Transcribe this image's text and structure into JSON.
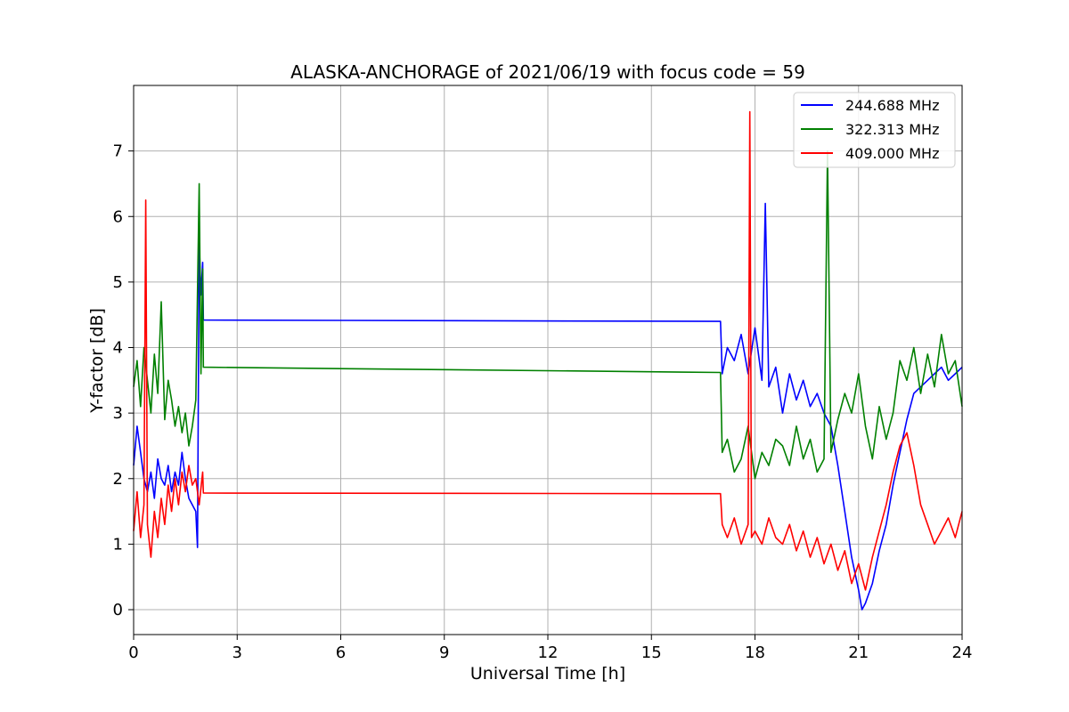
{
  "chart_data": {
    "type": "line",
    "title": "ALASKA-ANCHORAGE of 2021/06/19 with focus code = 59",
    "xlabel": "Universal Time [h]",
    "ylabel": "Y-factor [dB]",
    "xlim": [
      0,
      24
    ],
    "ylim": [
      -0.38,
      8.0
    ],
    "xticks": [
      "0",
      "3",
      "6",
      "9",
      "12",
      "15",
      "18",
      "21",
      "24"
    ],
    "yticks": [
      "0",
      "1",
      "2",
      "3",
      "4",
      "5",
      "6",
      "7"
    ],
    "grid": true,
    "legend_position": "top-right",
    "series": [
      {
        "name": "244.688 MHz",
        "color": "#0000ff",
        "points": [
          [
            0.0,
            2.2
          ],
          [
            0.1,
            2.8
          ],
          [
            0.2,
            2.4
          ],
          [
            0.3,
            2.0
          ],
          [
            0.4,
            1.8
          ],
          [
            0.5,
            2.1
          ],
          [
            0.6,
            1.7
          ],
          [
            0.7,
            2.3
          ],
          [
            0.8,
            2.0
          ],
          [
            0.9,
            1.9
          ],
          [
            1.0,
            2.2
          ],
          [
            1.1,
            1.8
          ],
          [
            1.2,
            2.1
          ],
          [
            1.3,
            1.9
          ],
          [
            1.4,
            2.4
          ],
          [
            1.5,
            2.0
          ],
          [
            1.6,
            1.7
          ],
          [
            1.7,
            1.6
          ],
          [
            1.8,
            1.5
          ],
          [
            1.85,
            0.95
          ],
          [
            1.9,
            5.62
          ],
          [
            1.95,
            4.8
          ],
          [
            2.0,
            5.3
          ],
          [
            2.02,
            4.42
          ],
          [
            17.0,
            4.4
          ],
          [
            17.05,
            3.6
          ],
          [
            17.2,
            4.0
          ],
          [
            17.4,
            3.8
          ],
          [
            17.6,
            4.2
          ],
          [
            17.8,
            3.6
          ],
          [
            18.0,
            4.3
          ],
          [
            18.2,
            3.5
          ],
          [
            18.3,
            6.2
          ],
          [
            18.4,
            3.4
          ],
          [
            18.6,
            3.7
          ],
          [
            18.8,
            3.0
          ],
          [
            19.0,
            3.6
          ],
          [
            19.2,
            3.2
          ],
          [
            19.4,
            3.5
          ],
          [
            19.6,
            3.1
          ],
          [
            19.8,
            3.3
          ],
          [
            20.0,
            3.0
          ],
          [
            20.2,
            2.8
          ],
          [
            20.4,
            2.2
          ],
          [
            20.6,
            1.5
          ],
          [
            20.8,
            0.8
          ],
          [
            21.0,
            0.3
          ],
          [
            21.1,
            0.0
          ],
          [
            21.2,
            0.1
          ],
          [
            21.4,
            0.4
          ],
          [
            21.6,
            0.9
          ],
          [
            21.8,
            1.3
          ],
          [
            22.0,
            1.9
          ],
          [
            22.2,
            2.4
          ],
          [
            22.4,
            2.9
          ],
          [
            22.6,
            3.3
          ],
          [
            22.8,
            3.4
          ],
          [
            23.0,
            3.5
          ],
          [
            23.2,
            3.6
          ],
          [
            23.4,
            3.7
          ],
          [
            23.6,
            3.5
          ],
          [
            23.8,
            3.6
          ],
          [
            24.0,
            3.7
          ]
        ]
      },
      {
        "name": "322.313 MHz",
        "color": "#008000",
        "points": [
          [
            0.0,
            3.4
          ],
          [
            0.1,
            3.8
          ],
          [
            0.2,
            3.1
          ],
          [
            0.3,
            4.0
          ],
          [
            0.4,
            3.5
          ],
          [
            0.5,
            3.0
          ],
          [
            0.6,
            3.9
          ],
          [
            0.7,
            3.3
          ],
          [
            0.8,
            4.7
          ],
          [
            0.9,
            2.9
          ],
          [
            1.0,
            3.5
          ],
          [
            1.1,
            3.2
          ],
          [
            1.2,
            2.8
          ],
          [
            1.3,
            3.1
          ],
          [
            1.4,
            2.7
          ],
          [
            1.5,
            3.0
          ],
          [
            1.6,
            2.5
          ],
          [
            1.7,
            2.8
          ],
          [
            1.8,
            3.2
          ],
          [
            1.9,
            6.5
          ],
          [
            1.95,
            3.6
          ],
          [
            2.0,
            5.2
          ],
          [
            2.02,
            3.7
          ],
          [
            17.0,
            3.62
          ],
          [
            17.05,
            2.4
          ],
          [
            17.2,
            2.6
          ],
          [
            17.4,
            2.1
          ],
          [
            17.6,
            2.3
          ],
          [
            17.8,
            2.8
          ],
          [
            18.0,
            2.0
          ],
          [
            18.2,
            2.4
          ],
          [
            18.4,
            2.2
          ],
          [
            18.6,
            2.6
          ],
          [
            18.8,
            2.5
          ],
          [
            19.0,
            2.2
          ],
          [
            19.2,
            2.8
          ],
          [
            19.4,
            2.3
          ],
          [
            19.6,
            2.6
          ],
          [
            19.8,
            2.1
          ],
          [
            20.0,
            2.3
          ],
          [
            20.1,
            7.0
          ],
          [
            20.2,
            2.4
          ],
          [
            20.4,
            2.9
          ],
          [
            20.6,
            3.3
          ],
          [
            20.8,
            3.0
          ],
          [
            21.0,
            3.6
          ],
          [
            21.2,
            2.8
          ],
          [
            21.4,
            2.3
          ],
          [
            21.6,
            3.1
          ],
          [
            21.8,
            2.6
          ],
          [
            22.0,
            3.0
          ],
          [
            22.2,
            3.8
          ],
          [
            22.4,
            3.5
          ],
          [
            22.6,
            4.0
          ],
          [
            22.8,
            3.3
          ],
          [
            23.0,
            3.9
          ],
          [
            23.2,
            3.4
          ],
          [
            23.4,
            4.2
          ],
          [
            23.6,
            3.6
          ],
          [
            23.8,
            3.8
          ],
          [
            24.0,
            3.1
          ]
        ]
      },
      {
        "name": "409.000 MHz",
        "color": "#ff0000",
        "points": [
          [
            0.0,
            1.2
          ],
          [
            0.1,
            1.8
          ],
          [
            0.2,
            1.1
          ],
          [
            0.3,
            1.6
          ],
          [
            0.35,
            6.25
          ],
          [
            0.4,
            1.3
          ],
          [
            0.5,
            0.8
          ],
          [
            0.6,
            1.5
          ],
          [
            0.7,
            1.1
          ],
          [
            0.8,
            1.7
          ],
          [
            0.9,
            1.3
          ],
          [
            1.0,
            1.9
          ],
          [
            1.1,
            1.5
          ],
          [
            1.2,
            2.0
          ],
          [
            1.3,
            1.6
          ],
          [
            1.4,
            2.1
          ],
          [
            1.5,
            1.8
          ],
          [
            1.6,
            2.2
          ],
          [
            1.7,
            1.9
          ],
          [
            1.8,
            2.0
          ],
          [
            1.9,
            1.6
          ],
          [
            2.0,
            2.1
          ],
          [
            2.02,
            1.78
          ],
          [
            17.0,
            1.77
          ],
          [
            17.05,
            1.3
          ],
          [
            17.2,
            1.1
          ],
          [
            17.4,
            1.4
          ],
          [
            17.6,
            1.0
          ],
          [
            17.8,
            1.3
          ],
          [
            17.85,
            7.6
          ],
          [
            17.9,
            1.1
          ],
          [
            18.0,
            1.2
          ],
          [
            18.2,
            1.0
          ],
          [
            18.4,
            1.4
          ],
          [
            18.6,
            1.1
          ],
          [
            18.8,
            1.0
          ],
          [
            19.0,
            1.3
          ],
          [
            19.2,
            0.9
          ],
          [
            19.4,
            1.2
          ],
          [
            19.6,
            0.8
          ],
          [
            19.8,
            1.1
          ],
          [
            20.0,
            0.7
          ],
          [
            20.2,
            1.0
          ],
          [
            20.4,
            0.6
          ],
          [
            20.6,
            0.9
          ],
          [
            20.8,
            0.4
          ],
          [
            21.0,
            0.7
          ],
          [
            21.2,
            0.3
          ],
          [
            21.4,
            0.8
          ],
          [
            21.6,
            1.2
          ],
          [
            21.8,
            1.6
          ],
          [
            22.0,
            2.1
          ],
          [
            22.2,
            2.5
          ],
          [
            22.4,
            2.7
          ],
          [
            22.6,
            2.2
          ],
          [
            22.8,
            1.6
          ],
          [
            23.0,
            1.3
          ],
          [
            23.2,
            1.0
          ],
          [
            23.4,
            1.2
          ],
          [
            23.6,
            1.4
          ],
          [
            23.8,
            1.1
          ],
          [
            24.0,
            1.5
          ]
        ]
      }
    ]
  }
}
